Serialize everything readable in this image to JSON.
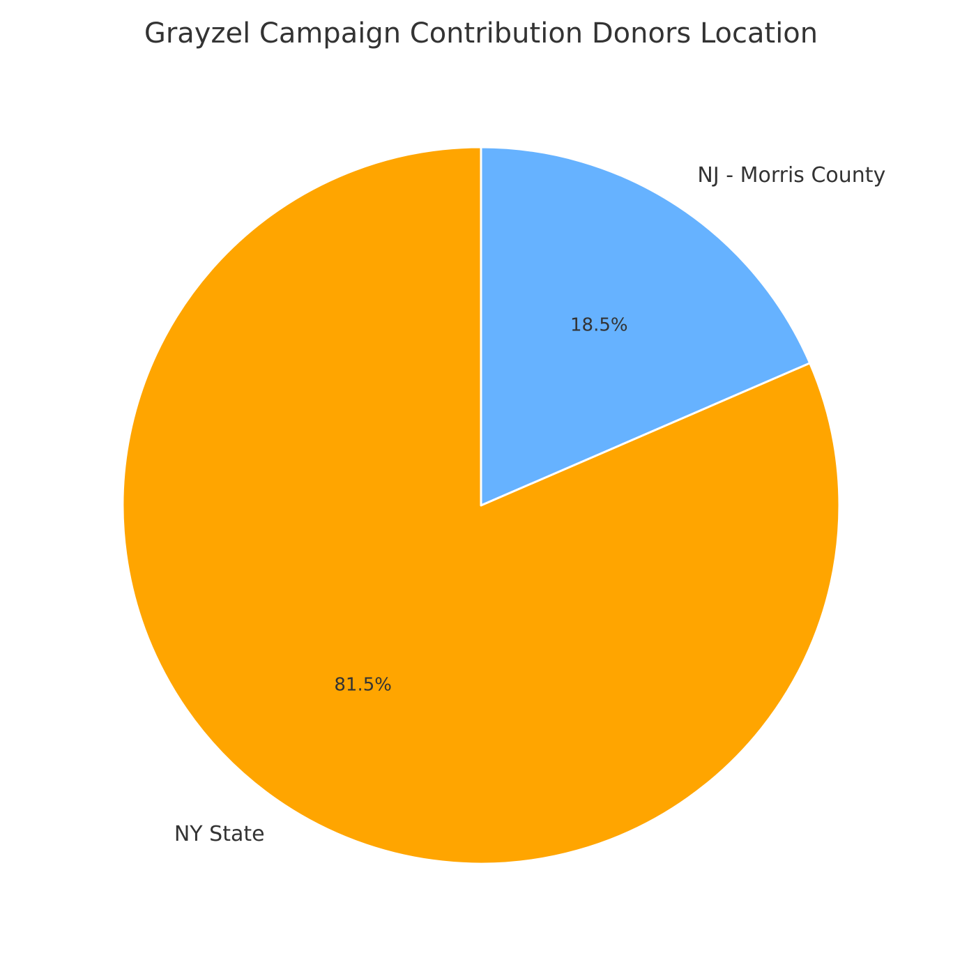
{
  "chart_data": {
    "type": "pie",
    "title": "Grayzel Campaign Contribution Donors Location",
    "categories": [
      "NJ - Morris County",
      "NY State"
    ],
    "values": [
      18.5,
      81.5
    ],
    "value_labels": [
      "18.5%",
      "81.5%"
    ],
    "colors": [
      "#66b2ff",
      "#ffa500"
    ]
  }
}
